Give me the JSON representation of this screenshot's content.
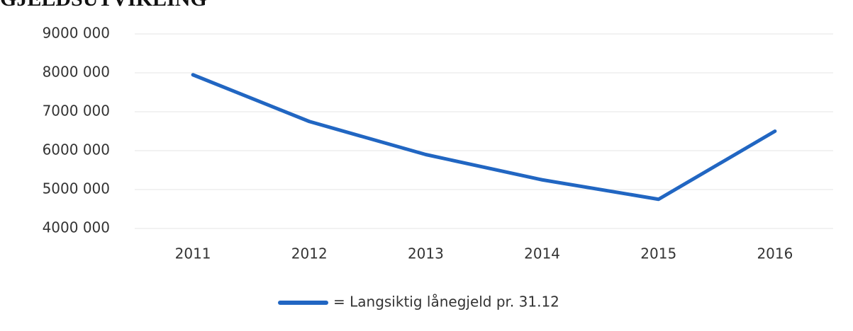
{
  "chart_data": {
    "type": "line",
    "title": "GJELDSUTVIKLING",
    "categories": [
      "2011",
      "2012",
      "2013",
      "2014",
      "2015",
      "2016"
    ],
    "series": [
      {
        "name": "= Langsiktig lånegjeld pr. 31.12",
        "color": "#2166c2",
        "values": [
          7950000,
          6750000,
          5900000,
          5250000,
          4750000,
          6500000
        ]
      }
    ],
    "ylim": [
      4000000,
      9000000
    ],
    "yticks": [
      {
        "value": 4000000,
        "label": "4000 000"
      },
      {
        "value": 5000000,
        "label": "5000 000"
      },
      {
        "value": 6000000,
        "label": "6000 000"
      },
      {
        "value": 7000000,
        "label": "7000 000"
      },
      {
        "value": 8000000,
        "label": "8000 000"
      },
      {
        "value": 9000000,
        "label": "9000 000"
      }
    ],
    "grid": true,
    "legend": "bottom"
  }
}
